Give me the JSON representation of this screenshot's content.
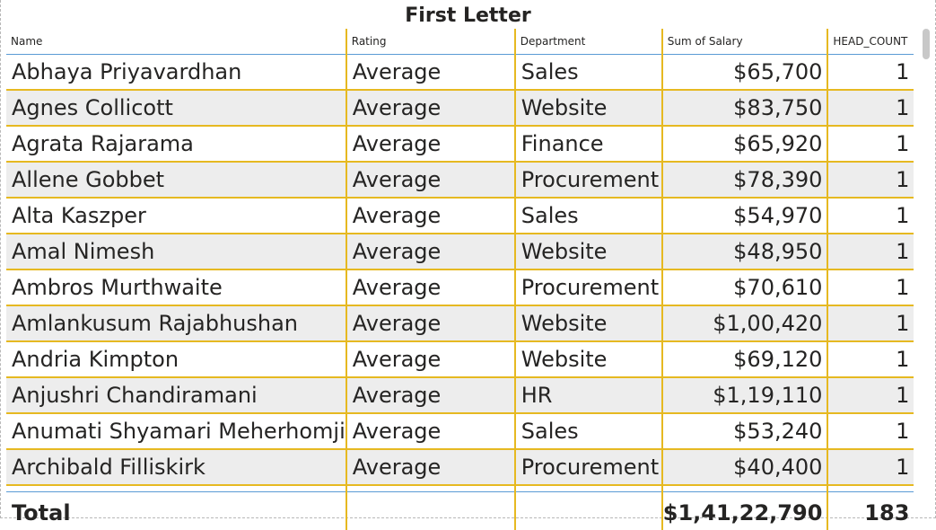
{
  "title": "First Letter",
  "columns": [
    "Name",
    "Rating",
    "Department",
    "Sum of Salary",
    "HEAD_COUNT"
  ],
  "rows": [
    {
      "name": "Abhaya Priyavardhan",
      "rating": "Average",
      "department": "Sales",
      "salary": "$65,700",
      "head_count": "1"
    },
    {
      "name": "Agnes Collicott",
      "rating": "Average",
      "department": "Website",
      "salary": "$83,750",
      "head_count": "1"
    },
    {
      "name": "Agrata Rajarama",
      "rating": "Average",
      "department": "Finance",
      "salary": "$65,920",
      "head_count": "1"
    },
    {
      "name": "Allene Gobbet",
      "rating": "Average",
      "department": "Procurement",
      "salary": "$78,390",
      "head_count": "1"
    },
    {
      "name": "Alta Kaszper",
      "rating": "Average",
      "department": "Sales",
      "salary": "$54,970",
      "head_count": "1"
    },
    {
      "name": "Amal Nimesh",
      "rating": "Average",
      "department": "Website",
      "salary": "$48,950",
      "head_count": "1"
    },
    {
      "name": "Ambros Murthwaite",
      "rating": "Average",
      "department": "Procurement",
      "salary": "$70,610",
      "head_count": "1"
    },
    {
      "name": "Amlankusum Rajabhushan",
      "rating": "Average",
      "department": "Website",
      "salary": "$1,00,420",
      "head_count": "1"
    },
    {
      "name": "Andria Kimpton",
      "rating": "Average",
      "department": "Website",
      "salary": "$69,120",
      "head_count": "1"
    },
    {
      "name": "Anjushri Chandiramani",
      "rating": "Average",
      "department": "HR",
      "salary": "$1,19,110",
      "head_count": "1"
    },
    {
      "name": "Anumati Shyamari Meherhomji",
      "rating": "Average",
      "department": "Sales",
      "salary": "$53,240",
      "head_count": "1"
    },
    {
      "name": "Archibald Filliskirk",
      "rating": "Average",
      "department": "Procurement",
      "salary": "$40,400",
      "head_count": "1"
    }
  ],
  "total": {
    "label": "Total",
    "salary": "$1,41,22,790",
    "head_count": "183"
  },
  "colors": {
    "accent_gold": "#e6b921",
    "header_rule": "#5a9bd5",
    "alt_row": "#ededed"
  }
}
